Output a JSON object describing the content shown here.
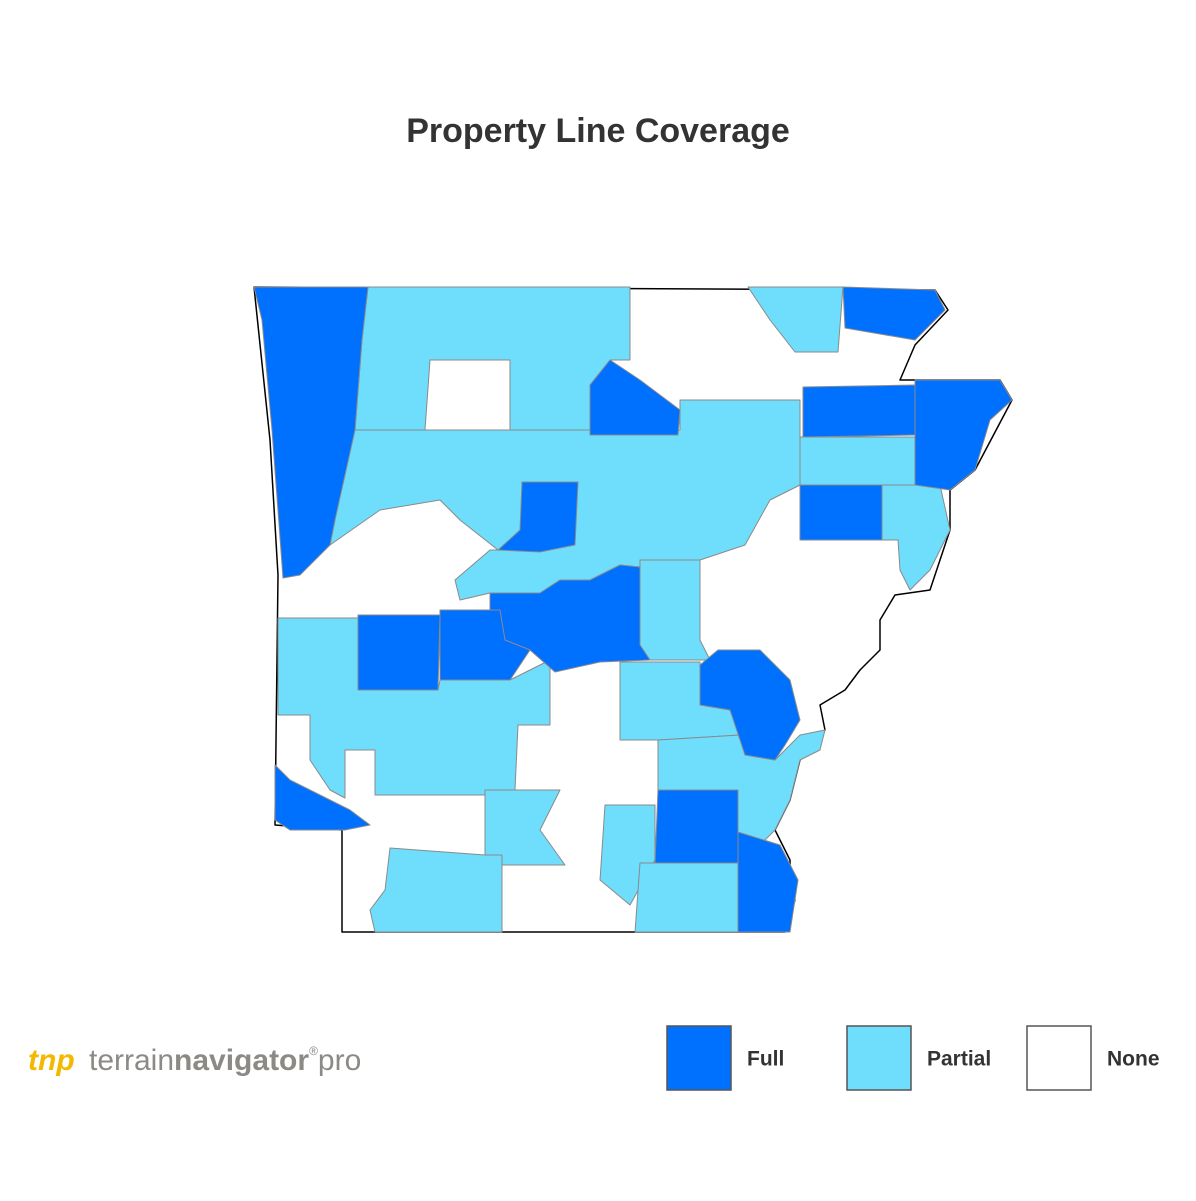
{
  "header": {
    "title": "Property Line Coverage"
  },
  "legend": {
    "items": [
      {
        "label": "Full",
        "color": "#0070ff"
      },
      {
        "label": "Partial",
        "color": "#6fddfc"
      },
      {
        "label": "None",
        "color": "#ffffff"
      }
    ]
  },
  "logo": {
    "mark": "tnp",
    "word1": "terrain",
    "word2": "navigator",
    "reg": "®",
    "word3": "pro"
  }
}
